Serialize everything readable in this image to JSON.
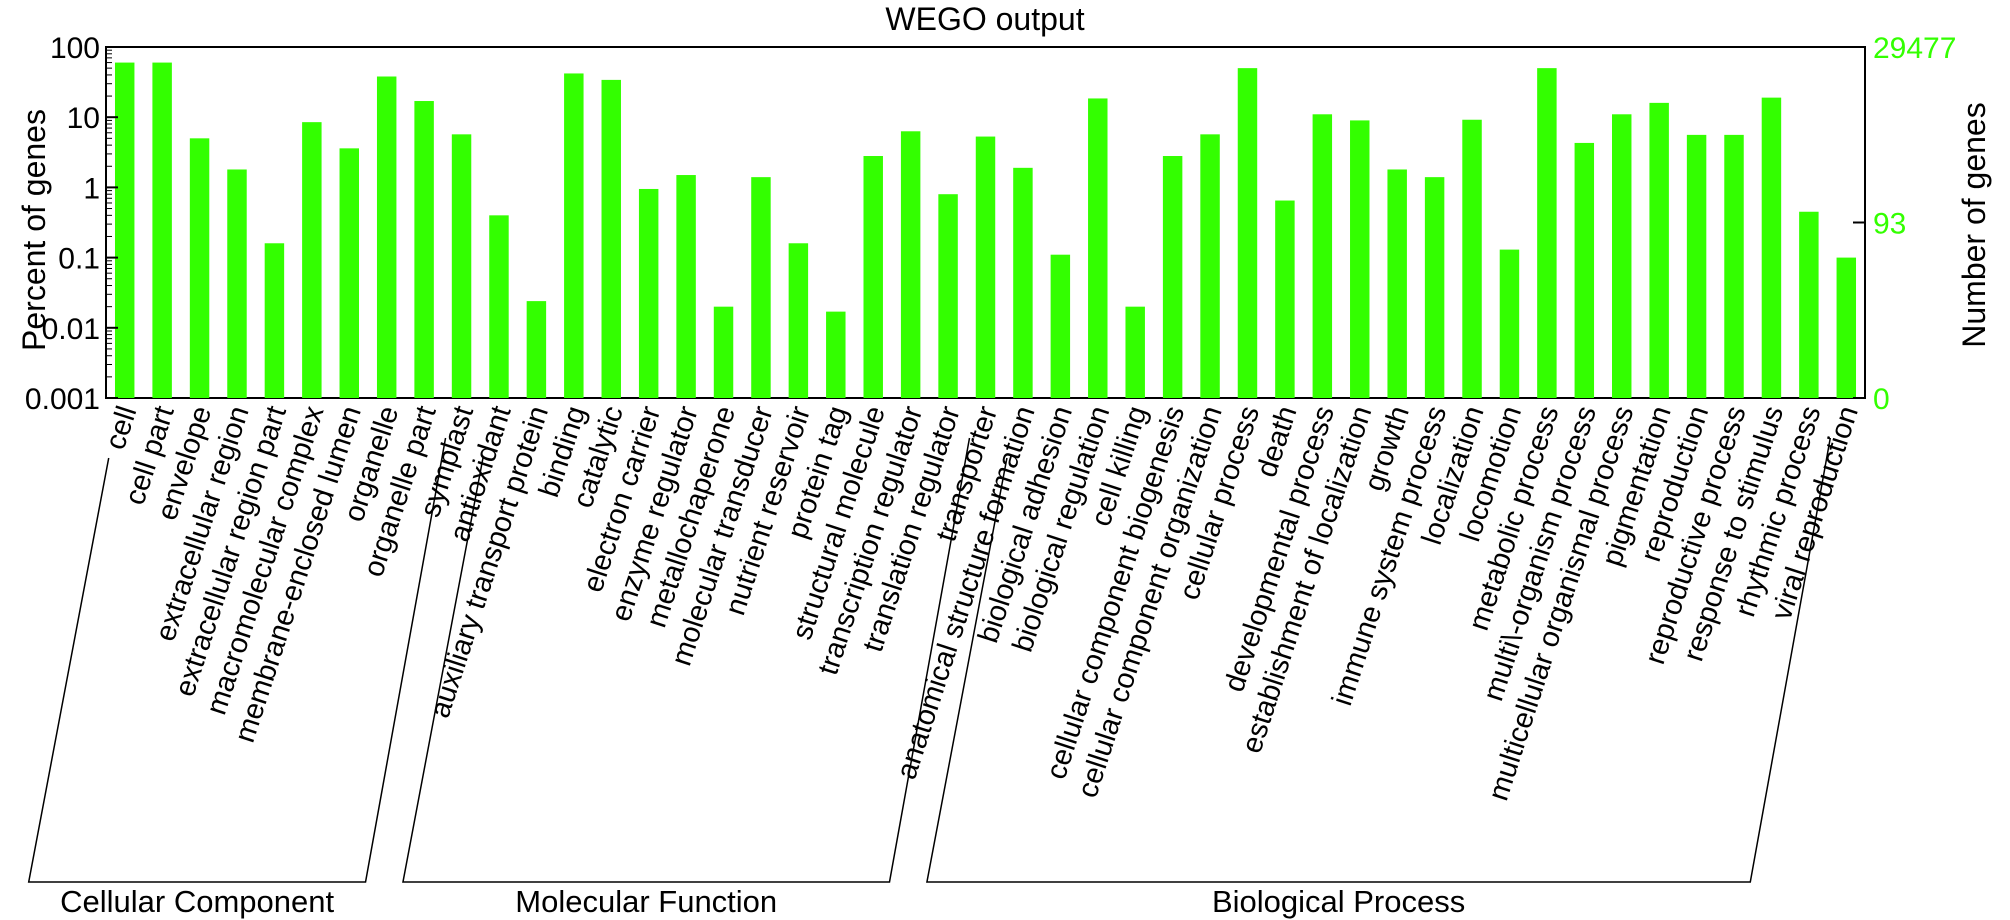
{
  "chart_data": {
    "type": "bar",
    "title": "WEGO output",
    "ylabel": "Percent of genes",
    "y2label": "Number of genes",
    "yscale": "log",
    "ylim": [
      0.001,
      100
    ],
    "yticks": [
      "100",
      "10",
      "1",
      "0.1",
      "0.01",
      "0.001"
    ],
    "y2ticks": [
      "29477",
      "93",
      "0"
    ],
    "bar_color": "#33ff00",
    "grid": false,
    "categories": [
      "cell",
      "cell part",
      "envelope",
      "extracellular region",
      "extracellular region part",
      "macromolecular complex",
      "membrane-enclosed lumen",
      "organelle",
      "organelle part",
      "symplast",
      "antioxidant",
      "auxiliary transport protein",
      "binding",
      "catalytic",
      "electron carrier",
      "enzyme regulator",
      "metallochaperone",
      "molecular transducer",
      "nutrient reservoir",
      "protein tag",
      "structural molecule",
      "transcription regulator",
      "translation regulator",
      "transporter",
      "anatomical structure formation",
      "biological adhesion",
      "biological regulation",
      "cell killing",
      "cellular component biogenesis",
      "cellular component organization",
      "cellular process",
      "death",
      "developmental process",
      "establishment of localization",
      "growth",
      "immune system process",
      "localization",
      "locomotion",
      "metabolic process",
      "multi\\-organism process",
      "multicellular organismal process",
      "pigmentation",
      "reproduction",
      "reproductive process",
      "response to stimulus",
      "rhythmic process",
      "viral reproduction"
    ],
    "values": [
      60,
      60,
      5,
      1.8,
      0.16,
      8.5,
      3.6,
      38,
      17,
      5.7,
      0.4,
      0.024,
      42,
      34,
      0.95,
      1.5,
      0.02,
      1.4,
      0.16,
      0.017,
      2.8,
      6.3,
      0.8,
      5.3,
      1.9,
      0.11,
      18.5,
      0.02,
      2.8,
      5.7,
      50,
      0.65,
      11,
      9,
      1.8,
      1.4,
      9.2,
      0.13,
      50,
      4.3,
      11,
      16,
      5.6,
      5.6,
      19,
      0.45,
      0.1
    ],
    "groups": [
      {
        "name": "Cellular Component",
        "start": 0,
        "end": 9
      },
      {
        "name": "Molecular Function",
        "start": 10,
        "end": 23
      },
      {
        "name": "Biological Process",
        "start": 24,
        "end": 46
      }
    ]
  }
}
